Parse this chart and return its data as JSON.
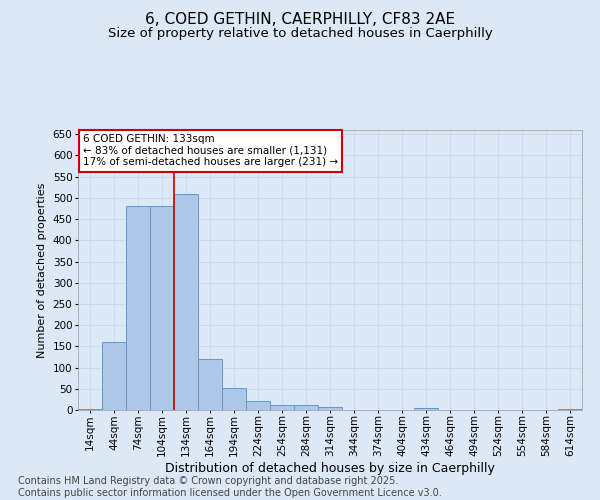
{
  "title": "6, COED GETHIN, CAERPHILLY, CF83 2AE",
  "subtitle": "Size of property relative to detached houses in Caerphilly",
  "xlabel": "Distribution of detached houses by size in Caerphilly",
  "ylabel": "Number of detached properties",
  "footer_line1": "Contains HM Land Registry data © Crown copyright and database right 2025.",
  "footer_line2": "Contains public sector information licensed under the Open Government Licence v3.0.",
  "annotation_line1": "6 COED GETHIN: 133sqm",
  "annotation_line2": "← 83% of detached houses are smaller (1,131)",
  "annotation_line3": "17% of semi-detached houses are larger (231) →",
  "bar_categories": [
    "14sqm",
    "44sqm",
    "74sqm",
    "104sqm",
    "134sqm",
    "164sqm",
    "194sqm",
    "224sqm",
    "254sqm",
    "284sqm",
    "314sqm",
    "344sqm",
    "374sqm",
    "404sqm",
    "434sqm",
    "464sqm",
    "494sqm",
    "524sqm",
    "554sqm",
    "584sqm",
    "614sqm"
  ],
  "bar_values": [
    2,
    160,
    480,
    480,
    510,
    120,
    52,
    22,
    12,
    12,
    8,
    0,
    0,
    0,
    5,
    0,
    0,
    0,
    0,
    0,
    3
  ],
  "bar_color": "#aec6e8",
  "bar_edge_color": "#5b9bd5",
  "vline_color": "#cc0000",
  "annotation_box_color": "#cc0000",
  "annotation_bg": "#ffffff",
  "ylim": [
    0,
    660
  ],
  "yticks": [
    0,
    50,
    100,
    150,
    200,
    250,
    300,
    350,
    400,
    450,
    500,
    550,
    600,
    650
  ],
  "grid_color": "#c5d8ee",
  "background_color": "#dce8f5",
  "title_fontsize": 11,
  "subtitle_fontsize": 9.5,
  "ylabel_fontsize": 8,
  "xlabel_fontsize": 9,
  "tick_fontsize": 7.5,
  "annotation_fontsize": 7.5,
  "footer_fontsize": 7
}
